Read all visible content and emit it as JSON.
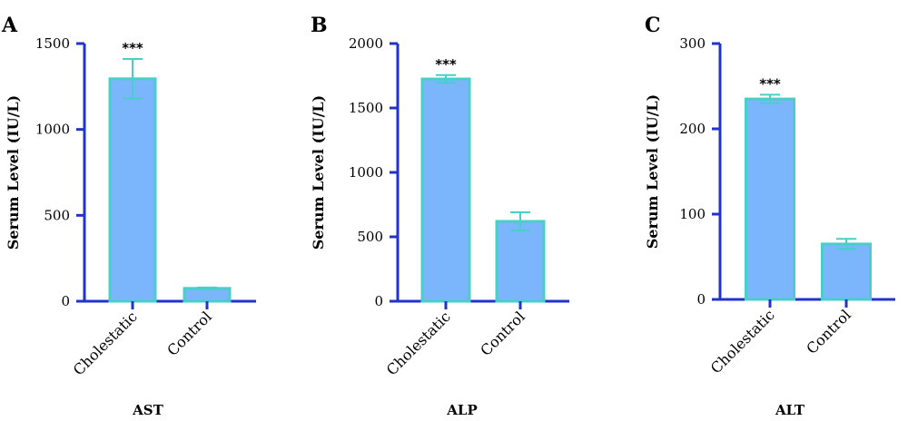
{
  "colors": {
    "axis": "#2233cc",
    "bar_fill": "#74b1fb",
    "bar_stroke": "#49cfc8",
    "error_bar": "#49cfc8"
  },
  "chart_data": [
    {
      "type": "bar",
      "panel_letter": "A",
      "title": "",
      "xlabel": "AST",
      "ylabel": "Serum Level (IU/L)",
      "ylim": [
        0,
        1500
      ],
      "yticks": [
        "0",
        "500",
        "1000",
        "1500"
      ],
      "categories": [
        "Cholestatic",
        "Control"
      ],
      "values": [
        1295,
        75
      ],
      "errors": [
        115,
        5
      ],
      "significance": [
        "***",
        ""
      ]
    },
    {
      "type": "bar",
      "panel_letter": "B",
      "title": "",
      "xlabel": "ALP",
      "ylabel": "Serum Level (IU/L)",
      "ylim": [
        0,
        2000
      ],
      "yticks": [
        "0",
        "500",
        "1000",
        "1500",
        "2000"
      ],
      "categories": [
        "Cholestatic",
        "Control"
      ],
      "values": [
        1725,
        620
      ],
      "errors": [
        30,
        70
      ],
      "significance": [
        "***",
        ""
      ]
    },
    {
      "type": "bar",
      "panel_letter": "C",
      "title": "",
      "xlabel": "ALT",
      "ylabel": "Serum Level (IU/L)",
      "ylim": [
        0,
        300
      ],
      "yticks": [
        "0",
        "100",
        "200",
        "300"
      ],
      "categories": [
        "Cholestatic",
        "Control"
      ],
      "values": [
        235,
        65
      ],
      "errors": [
        5,
        6
      ],
      "significance": [
        "***",
        ""
      ]
    }
  ]
}
